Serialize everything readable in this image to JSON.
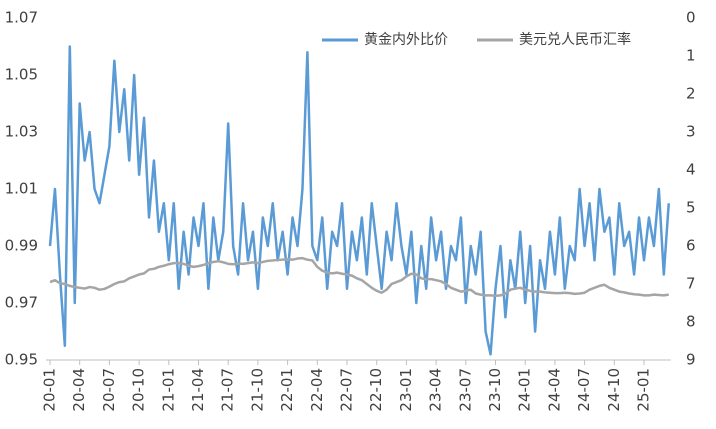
{
  "chart_data": {
    "type": "line",
    "categories": [
      "20-01",
      null,
      null,
      null,
      null,
      null,
      "20-04",
      null,
      null,
      null,
      null,
      null,
      "20-07",
      null,
      null,
      null,
      null,
      null,
      "20-10",
      null,
      null,
      null,
      null,
      null,
      "21-01",
      null,
      null,
      null,
      null,
      null,
      "21-04",
      null,
      null,
      null,
      null,
      null,
      "21-07",
      null,
      null,
      null,
      null,
      null,
      "21-10",
      null,
      null,
      null,
      null,
      null,
      "22-01",
      null,
      null,
      null,
      null,
      null,
      "22-04",
      null,
      null,
      null,
      null,
      null,
      "22-07",
      null,
      null,
      null,
      null,
      null,
      "22-10",
      null,
      null,
      null,
      null,
      null,
      "23-01",
      null,
      null,
      null,
      null,
      null,
      "23-04",
      null,
      null,
      null,
      null,
      null,
      "23-07",
      null,
      null,
      null,
      null,
      null,
      "23-10",
      null,
      null,
      null,
      null,
      null,
      "24-01",
      null,
      null,
      null,
      null,
      null,
      "24-04",
      null,
      null,
      null,
      null,
      null,
      "24-07",
      null,
      null,
      null,
      null,
      null,
      "24-10",
      null,
      null,
      null,
      null,
      null,
      "25-01",
      null,
      null,
      null,
      null,
      null
    ],
    "series": [
      {
        "name": "黄金内外比价",
        "color": "#5b9bd5",
        "values": [
          0.99,
          1.01,
          0.98,
          0.955,
          1.06,
          0.97,
          1.04,
          1.02,
          1.03,
          1.01,
          1.005,
          1.015,
          1.025,
          1.055,
          1.03,
          1.045,
          1.02,
          1.05,
          1.015,
          1.035,
          1.0,
          1.02,
          0.995,
          1.005,
          0.985,
          1.005,
          0.975,
          0.995,
          0.98,
          1.0,
          0.99,
          1.005,
          0.975,
          1.0,
          0.985,
          0.995,
          1.033,
          0.99,
          0.98,
          1.005,
          0.985,
          0.995,
          0.975,
          1.0,
          0.99,
          1.005,
          0.985,
          0.995,
          0.98,
          1.0,
          0.99,
          1.01,
          1.058,
          0.99,
          0.985,
          1.0,
          0.975,
          0.995,
          0.99,
          1.005,
          0.975,
          0.995,
          0.985,
          1.0,
          0.98,
          1.005,
          0.99,
          0.975,
          0.995,
          0.985,
          1.005,
          0.99,
          0.98,
          0.995,
          0.97,
          0.99,
          0.975,
          1.0,
          0.985,
          0.995,
          0.975,
          0.99,
          0.985,
          1.0,
          0.97,
          0.99,
          0.98,
          0.995,
          0.96,
          0.952,
          0.975,
          0.99,
          0.965,
          0.985,
          0.975,
          0.995,
          0.97,
          0.99,
          0.96,
          0.985,
          0.975,
          0.995,
          0.98,
          1.0,
          0.975,
          0.99,
          0.985,
          1.01,
          0.99,
          1.005,
          0.985,
          1.01,
          0.995,
          1.0,
          0.98,
          1.005,
          0.99,
          0.995,
          0.98,
          1.0,
          0.985,
          1.0,
          0.99,
          1.01,
          0.98,
          1.005
        ]
      },
      {
        "name": "美元兑人民币汇率",
        "color": "#a5a5a5",
        "axis": "y2",
        "values": [
          6.95,
          6.9,
          6.98,
          7.0,
          7.05,
          7.08,
          7.1,
          7.12,
          7.08,
          7.1,
          7.15,
          7.13,
          7.07,
          7.0,
          6.95,
          6.93,
          6.85,
          6.8,
          6.75,
          6.72,
          6.62,
          6.6,
          6.55,
          6.52,
          6.48,
          6.45,
          6.45,
          6.47,
          6.52,
          6.55,
          6.53,
          6.5,
          6.45,
          6.42,
          6.4,
          6.43,
          6.47,
          6.48,
          6.46,
          6.47,
          6.45,
          6.43,
          6.45,
          6.42,
          6.39,
          6.38,
          6.37,
          6.36,
          6.35,
          6.36,
          6.33,
          6.32,
          6.36,
          6.38,
          6.55,
          6.65,
          6.7,
          6.72,
          6.7,
          6.73,
          6.75,
          6.78,
          6.85,
          6.9,
          7.0,
          7.1,
          7.18,
          7.23,
          7.15,
          7.0,
          6.95,
          6.9,
          6.8,
          6.73,
          6.75,
          6.85,
          6.88,
          6.87,
          6.9,
          6.93,
          7.0,
          7.1,
          7.15,
          7.2,
          7.18,
          7.15,
          7.25,
          7.28,
          7.3,
          7.3,
          7.31,
          7.3,
          7.25,
          7.15,
          7.12,
          7.1,
          7.15,
          7.18,
          7.2,
          7.2,
          7.22,
          7.23,
          7.24,
          7.24,
          7.23,
          7.24,
          7.26,
          7.25,
          7.23,
          7.15,
          7.1,
          7.05,
          7.02,
          7.1,
          7.15,
          7.2,
          7.22,
          7.25,
          7.27,
          7.28,
          7.3,
          7.3,
          7.28,
          7.29,
          7.3,
          7.28
        ]
      }
    ],
    "ylim": [
      0.95,
      1.07
    ],
    "yticks": [
      0.95,
      0.97,
      0.99,
      1.01,
      1.03,
      1.05,
      1.07
    ],
    "y2lim": [
      9,
      0
    ],
    "y2ticks": [
      0,
      1,
      2,
      3,
      4,
      5,
      6,
      7,
      8,
      9
    ],
    "legend": "top-right"
  }
}
